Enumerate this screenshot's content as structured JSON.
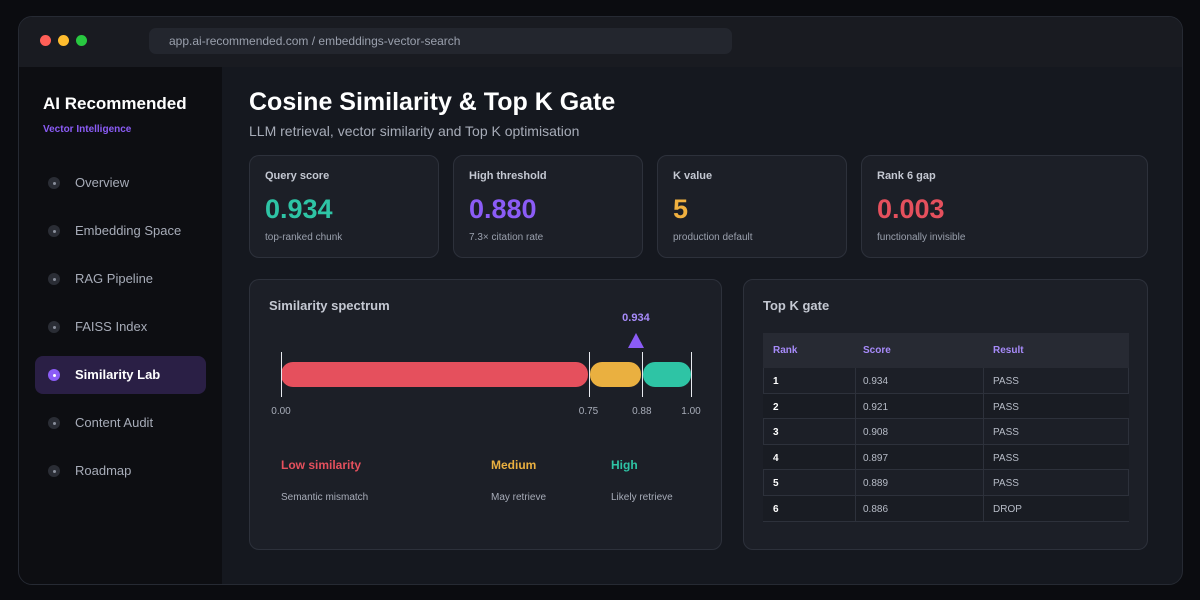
{
  "browser": {
    "url": "app.ai-recommended.com / embeddings-vector-search"
  },
  "sidebar": {
    "brand": "AI Recommended",
    "subtitle": "Vector Intelligence",
    "items": [
      {
        "label": "Overview",
        "active": false
      },
      {
        "label": "Embedding Space",
        "active": false
      },
      {
        "label": "RAG Pipeline",
        "active": false
      },
      {
        "label": "FAISS Index",
        "active": false
      },
      {
        "label": "Similarity Lab",
        "active": true
      },
      {
        "label": "Content Audit",
        "active": false
      },
      {
        "label": "Roadmap",
        "active": false
      }
    ]
  },
  "header": {
    "title": "Cosine Similarity & Top K Gate",
    "subtitle": "LLM retrieval, vector similarity and Top K optimisation"
  },
  "stats": [
    {
      "label": "Query score",
      "value": "0.934",
      "note": "top-ranked chunk",
      "color": "#2ec4a5"
    },
    {
      "label": "High threshold",
      "value": "0.880",
      "note": "7.3× citation rate",
      "color": "#8b5cf6"
    },
    {
      "label": "K value",
      "value": "5",
      "note": "production default",
      "color": "#f0b03f"
    },
    {
      "label": "Rank 6 gap",
      "value": "0.003",
      "note": "functionally invisible",
      "color": "#e5505d"
    }
  ],
  "spectrum": {
    "title": "Similarity spectrum",
    "marker_value": 0.934,
    "marker_label": "0.934",
    "ticks": [
      "0.00",
      "0.75",
      "0.88",
      "1.00"
    ],
    "bands": [
      {
        "name": "Low similarity",
        "desc": "Semantic mismatch",
        "from": 0.0,
        "to": 0.75,
        "color": "#e5505d"
      },
      {
        "name": "Medium",
        "desc": "May retrieve",
        "from": 0.75,
        "to": 0.88,
        "color": "#eab040"
      },
      {
        "name": "High",
        "desc": "Likely retrieve",
        "from": 0.88,
        "to": 1.0,
        "color": "#2ec4a5"
      }
    ]
  },
  "gate": {
    "title": "Top K gate",
    "headers": {
      "rank": "Rank",
      "score": "Score",
      "result": "Result"
    },
    "rows": [
      {
        "rank": "1",
        "score": "0.934",
        "result": "PASS"
      },
      {
        "rank": "2",
        "score": "0.921",
        "result": "PASS"
      },
      {
        "rank": "3",
        "score": "0.908",
        "result": "PASS"
      },
      {
        "rank": "4",
        "score": "0.897",
        "result": "PASS"
      },
      {
        "rank": "5",
        "score": "0.889",
        "result": "PASS"
      },
      {
        "rank": "6",
        "score": "0.886",
        "result": "DROP"
      }
    ]
  }
}
